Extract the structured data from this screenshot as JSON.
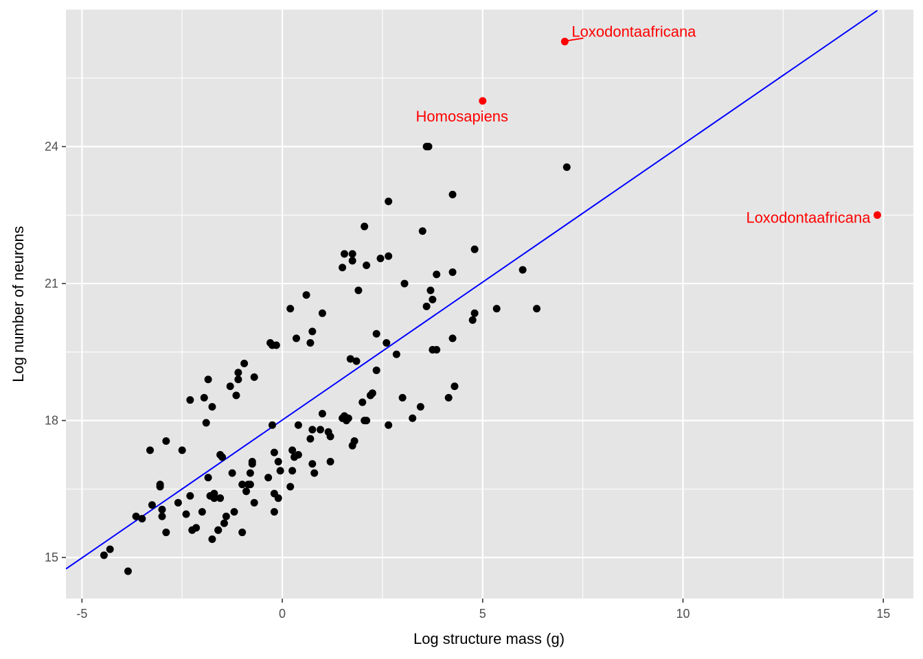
{
  "chart_data": {
    "type": "scatter",
    "title": "",
    "xlabel": "Log structure mass (g)",
    "ylabel": "Log number of neurons",
    "xlim": [
      -5.4,
      15.75
    ],
    "ylim": [
      14.1,
      27.0
    ],
    "x_ticks": [
      -5,
      0,
      5,
      10,
      15
    ],
    "x_tick_labels": [
      "-5",
      "0",
      "5",
      "10",
      "15"
    ],
    "y_ticks": [
      15,
      18,
      21,
      24
    ],
    "y_tick_labels": [
      "15",
      "18",
      "21",
      "24"
    ],
    "grid": true,
    "panel_color": "#e5e5e5",
    "grid_color": "#ffffff",
    "point_color": "#000000",
    "highlight_color": "#ff0000",
    "fit_line": {
      "color": "#0000ff",
      "x": [
        -5.4,
        14.85
      ],
      "y": [
        14.75,
        26.98
      ]
    },
    "points": [
      [
        -4.45,
        15.05
      ],
      [
        -4.3,
        15.18
      ],
      [
        -3.85,
        14.7
      ],
      [
        -3.65,
        15.9
      ],
      [
        -3.5,
        15.85
      ],
      [
        -3.25,
        16.15
      ],
      [
        -3.05,
        16.6
      ],
      [
        -3.05,
        16.55
      ],
      [
        -3.0,
        15.9
      ],
      [
        -3.0,
        16.05
      ],
      [
        -3.3,
        17.35
      ],
      [
        -2.9,
        17.55
      ],
      [
        -2.9,
        15.55
      ],
      [
        -2.6,
        16.2
      ],
      [
        -2.5,
        17.35
      ],
      [
        -2.4,
        15.95
      ],
      [
        -2.3,
        18.45
      ],
      [
        -2.3,
        16.35
      ],
      [
        -2.25,
        15.6
      ],
      [
        -2.15,
        15.65
      ],
      [
        -2.0,
        16.0
      ],
      [
        -1.95,
        18.5
      ],
      [
        -1.9,
        17.95
      ],
      [
        -1.85,
        18.9
      ],
      [
        -1.85,
        16.75
      ],
      [
        -1.8,
        16.35
      ],
      [
        -1.75,
        15.4
      ],
      [
        -1.75,
        18.3
      ],
      [
        -1.7,
        16.4
      ],
      [
        -1.7,
        16.3
      ],
      [
        -1.6,
        15.6
      ],
      [
        -1.6,
        15.6
      ],
      [
        -1.55,
        16.3
      ],
      [
        -1.55,
        17.25
      ],
      [
        -1.5,
        17.2
      ],
      [
        -1.45,
        15.75
      ],
      [
        -1.4,
        15.9
      ],
      [
        -1.3,
        18.75
      ],
      [
        -1.25,
        16.85
      ],
      [
        -1.2,
        16.0
      ],
      [
        -1.15,
        18.55
      ],
      [
        -1.1,
        19.05
      ],
      [
        -1.1,
        18.9
      ],
      [
        -1.0,
        16.6
      ],
      [
        -1.0,
        15.55
      ],
      [
        -0.95,
        19.25
      ],
      [
        -0.9,
        16.45
      ],
      [
        -0.85,
        16.6
      ],
      [
        -0.8,
        16.85
      ],
      [
        -0.8,
        16.6
      ],
      [
        -0.75,
        17.05
      ],
      [
        -0.75,
        17.1
      ],
      [
        -0.7,
        18.95
      ],
      [
        -0.7,
        16.2
      ],
      [
        -0.35,
        16.75
      ],
      [
        -0.3,
        19.7
      ],
      [
        -0.25,
        17.9
      ],
      [
        -0.25,
        19.65
      ],
      [
        -0.2,
        17.3
      ],
      [
        -0.2,
        16.0
      ],
      [
        -0.2,
        16.4
      ],
      [
        -0.15,
        19.65
      ],
      [
        -0.1,
        16.3
      ],
      [
        -0.1,
        17.1
      ],
      [
        -0.05,
        16.9
      ],
      [
        0.2,
        20.45
      ],
      [
        0.2,
        16.55
      ],
      [
        0.25,
        16.9
      ],
      [
        0.25,
        17.35
      ],
      [
        0.3,
        17.2
      ],
      [
        0.35,
        19.8
      ],
      [
        0.4,
        17.9
      ],
      [
        0.4,
        17.25
      ],
      [
        0.6,
        20.75
      ],
      [
        0.7,
        19.7
      ],
      [
        0.7,
        17.6
      ],
      [
        0.75,
        17.05
      ],
      [
        0.75,
        17.8
      ],
      [
        0.75,
        19.95
      ],
      [
        0.8,
        16.85
      ],
      [
        0.95,
        17.8
      ],
      [
        1.0,
        20.35
      ],
      [
        1.0,
        18.15
      ],
      [
        1.15,
        17.75
      ],
      [
        1.2,
        17.65
      ],
      [
        1.2,
        17.1
      ],
      [
        1.5,
        21.35
      ],
      [
        1.5,
        18.05
      ],
      [
        1.55,
        21.65
      ],
      [
        1.55,
        18.1
      ],
      [
        1.6,
        18.0
      ],
      [
        1.65,
        18.05
      ],
      [
        1.7,
        19.35
      ],
      [
        1.75,
        17.45
      ],
      [
        1.75,
        21.65
      ],
      [
        1.75,
        21.5
      ],
      [
        1.8,
        17.55
      ],
      [
        1.85,
        19.3
      ],
      [
        1.9,
        20.85
      ],
      [
        2.0,
        18.4
      ],
      [
        2.05,
        18.0
      ],
      [
        2.05,
        22.25
      ],
      [
        2.1,
        21.4
      ],
      [
        2.1,
        18.0
      ],
      [
        2.2,
        18.55
      ],
      [
        2.25,
        18.6
      ],
      [
        2.35,
        19.1
      ],
      [
        2.35,
        19.9
      ],
      [
        2.45,
        21.55
      ],
      [
        2.6,
        19.7
      ],
      [
        2.65,
        21.6
      ],
      [
        2.65,
        17.9
      ],
      [
        2.65,
        22.8
      ],
      [
        2.85,
        19.45
      ],
      [
        3.0,
        18.5
      ],
      [
        3.05,
        21.0
      ],
      [
        3.25,
        18.05
      ],
      [
        3.45,
        18.3
      ],
      [
        3.5,
        22.15
      ],
      [
        3.6,
        24.0
      ],
      [
        3.6,
        20.5
      ],
      [
        3.65,
        24.0
      ],
      [
        3.7,
        20.85
      ],
      [
        3.75,
        20.65
      ],
      [
        3.75,
        19.55
      ],
      [
        3.85,
        19.55
      ],
      [
        3.85,
        21.2
      ],
      [
        4.15,
        18.5
      ],
      [
        4.25,
        22.95
      ],
      [
        4.25,
        21.25
      ],
      [
        4.25,
        19.8
      ],
      [
        4.3,
        18.75
      ],
      [
        4.75,
        20.2
      ],
      [
        4.8,
        20.35
      ],
      [
        4.8,
        21.75
      ],
      [
        5.35,
        20.45
      ],
      [
        6.0,
        21.3
      ],
      [
        6.35,
        20.45
      ],
      [
        7.1,
        23.55
      ]
    ],
    "highlighted": [
      {
        "label": "Loxodontaafricana",
        "x": 7.05,
        "y": 26.3
      },
      {
        "label": "Homosapiens",
        "x": 5.0,
        "y": 25.0
      },
      {
        "label": "Loxodontaafricana",
        "x": 14.85,
        "y": 22.5
      }
    ]
  }
}
